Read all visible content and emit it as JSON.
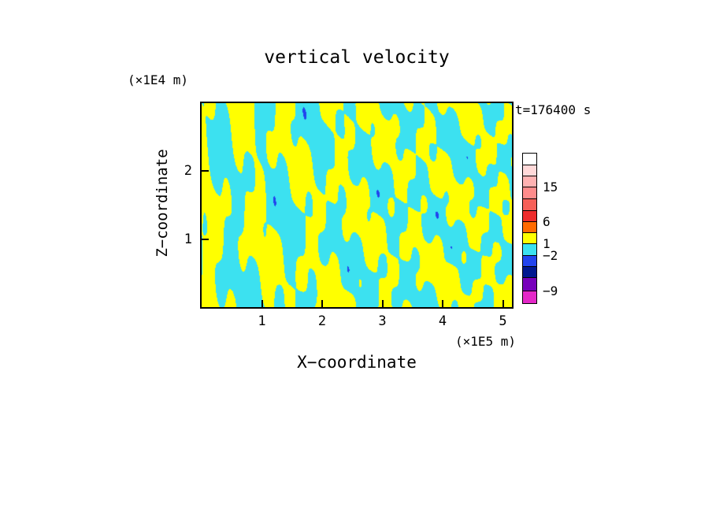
{
  "chart_data": {
    "type": "heatmap",
    "title": "vertical velocity",
    "timestamp": "t=176400 s",
    "xlabel": "X−coordinate",
    "ylabel": "Z−coordinate",
    "x_unit": "(×1E5 m)",
    "y_unit": "(×1E4 m)",
    "xlim": [
      0,
      5.15
    ],
    "ylim": [
      0,
      3.0
    ],
    "x_ticks": [
      1,
      2,
      3,
      4,
      5
    ],
    "y_ticks": [
      1,
      2
    ],
    "grid": false,
    "legend_position": "right-colorbar",
    "field_description": "2-D vertical cross-section of vertical velocity: alternating yellow (positive) and cyan (negative) gravity-wave bands, roughly vertical and fanning with height; rare deep-negative blue specks",
    "field_colors": {
      "positive": "#FFFF00",
      "negative": "#3CE1F0",
      "deep_negative": "#2244EE",
      "deep_threshold": -2.9
    },
    "field_waves": [
      {
        "a": 1.0,
        "kx": 5.2,
        "kz": 0.4,
        "kxz": 1.8,
        "p": 0.0
      },
      {
        "a": 0.9,
        "kx": 10.5,
        "kz": -1.2,
        "kxz": -2.5,
        "p": 1.4
      },
      {
        "a": 0.75,
        "kx": 2.0,
        "kz": 1.6,
        "kxz": 0.8,
        "p": 2.2
      },
      {
        "a": 0.6,
        "kx": 16.0,
        "kz": 2.0,
        "kxz": 3.0,
        "p": 4.1
      }
    ],
    "colorbar": {
      "segments": [
        {
          "color": "#FFFFFF",
          "h": 15
        },
        {
          "color": "#FFD9D9",
          "h": 14
        },
        {
          "color": "#FFB2B2",
          "h": 14
        },
        {
          "color": "#FF8C8C",
          "h": 15
        },
        {
          "color": "#F66058",
          "h": 15
        },
        {
          "color": "#EE2C2C",
          "h": 14
        },
        {
          "color": "#FF6A00",
          "h": 14
        },
        {
          "color": "#FFFF00",
          "h": 14
        },
        {
          "color": "#3CE1F0",
          "h": 15
        },
        {
          "color": "#2244EE",
          "h": 14
        },
        {
          "color": "#001890",
          "h": 14
        },
        {
          "color": "#7700BB",
          "h": 17
        },
        {
          "color": "#E428C8",
          "h": 15
        }
      ],
      "labels": [
        {
          "text": "15",
          "y": 43
        },
        {
          "text": "6",
          "y": 87
        },
        {
          "text": "1",
          "y": 115
        },
        {
          "text": "−2",
          "y": 130
        },
        {
          "text": "−9",
          "y": 175
        }
      ]
    }
  }
}
